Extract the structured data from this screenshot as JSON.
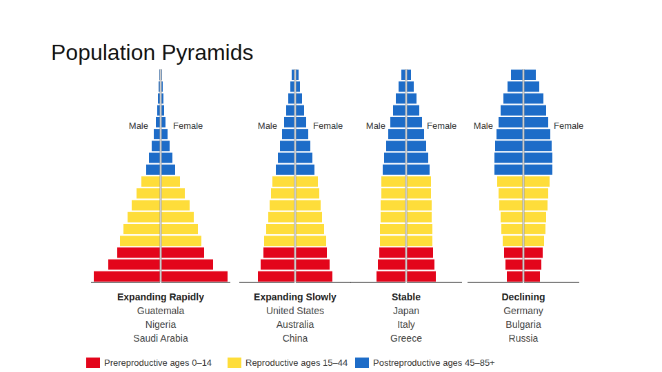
{
  "title": "Population Pyramids",
  "groups": [
    {
      "name": "Prereproductive ages 0–14",
      "color": "#e3051b"
    },
    {
      "name": "Reproductive ages 15–44",
      "color": "#fedd3a"
    },
    {
      "name": "Postreproductive ages 45–85+",
      "color": "#1d6cc8"
    }
  ],
  "chart_data": [
    {
      "type": "bar",
      "orientation": "horizontal",
      "title": "Expanding Rapidly",
      "annotations": [
        "Guatemala",
        "Nigeria",
        "Saudi Arabia"
      ],
      "categories": [
        null,
        null,
        null,
        null,
        null,
        null,
        null,
        null,
        null,
        null,
        null,
        null,
        null,
        null,
        null,
        null,
        null,
        null
      ],
      "series": [
        {
          "name": "Male",
          "values": [
            96,
            75,
            62,
            58,
            53,
            47,
            41,
            34,
            27,
            20,
            16,
            12,
            9,
            6,
            4,
            3,
            2,
            1
          ]
        },
        {
          "name": "Female",
          "values": [
            96,
            75,
            62,
            58,
            53,
            47,
            41,
            34,
            27,
            20,
            16,
            12,
            9,
            6,
            4,
            3,
            2,
            1
          ]
        }
      ],
      "colors": [
        "#e3051b",
        "#e3051b",
        "#e3051b",
        "#fedd3a",
        "#fedd3a",
        "#fedd3a",
        "#fedd3a",
        "#fedd3a",
        "#fedd3a",
        "#1d6cc8",
        "#1d6cc8",
        "#1d6cc8",
        "#1d6cc8",
        "#1d6cc8",
        "#1d6cc8",
        "#1d6cc8",
        "#1d6cc8",
        "#1d6cc8"
      ],
      "xlim": [
        0,
        100
      ],
      "tick_labels": false
    },
    {
      "type": "bar",
      "orientation": "horizontal",
      "title": "Expanding Slowly",
      "annotations": [
        "United States",
        "Australia",
        "China"
      ],
      "categories": [
        null,
        null,
        null,
        null,
        null,
        null,
        null,
        null,
        null,
        null,
        null,
        null,
        null,
        null,
        null,
        null,
        null,
        null
      ],
      "series": [
        {
          "name": "Male",
          "values": [
            53,
            49,
            45,
            44,
            41,
            38,
            36,
            34,
            32,
            27,
            24,
            21,
            18,
            15,
            12,
            9,
            6,
            4
          ]
        },
        {
          "name": "Female",
          "values": [
            53,
            49,
            45,
            44,
            41,
            38,
            36,
            34,
            32,
            27,
            24,
            21,
            18,
            15,
            12,
            9,
            6,
            4
          ]
        }
      ],
      "colors": [
        "#e3051b",
        "#e3051b",
        "#e3051b",
        "#fedd3a",
        "#fedd3a",
        "#fedd3a",
        "#fedd3a",
        "#fedd3a",
        "#fedd3a",
        "#1d6cc8",
        "#1d6cc8",
        "#1d6cc8",
        "#1d6cc8",
        "#1d6cc8",
        "#1d6cc8",
        "#1d6cc8",
        "#1d6cc8",
        "#1d6cc8"
      ],
      "xlim": [
        0,
        80
      ],
      "tick_labels": false
    },
    {
      "type": "bar",
      "orientation": "horizontal",
      "title": "Stable",
      "annotations": [
        "Japan",
        "Italy",
        "Greece"
      ],
      "categories": [
        null,
        null,
        null,
        null,
        null,
        null,
        null,
        null,
        null,
        null,
        null,
        null,
        null,
        null,
        null,
        null,
        null,
        null
      ],
      "series": [
        {
          "name": "Male",
          "values": [
            42,
            40,
            38,
            37,
            37,
            36,
            36,
            35,
            35,
            33,
            31,
            28,
            25,
            22,
            18,
            14,
            10,
            6
          ]
        },
        {
          "name": "Female",
          "values": [
            42,
            40,
            38,
            37,
            37,
            36,
            36,
            35,
            35,
            33,
            31,
            28,
            25,
            22,
            18,
            14,
            10,
            6
          ]
        }
      ],
      "colors": [
        "#e3051b",
        "#e3051b",
        "#e3051b",
        "#fedd3a",
        "#fedd3a",
        "#fedd3a",
        "#fedd3a",
        "#fedd3a",
        "#fedd3a",
        "#1d6cc8",
        "#1d6cc8",
        "#1d6cc8",
        "#1d6cc8",
        "#1d6cc8",
        "#1d6cc8",
        "#1d6cc8",
        "#1d6cc8",
        "#1d6cc8"
      ],
      "xlim": [
        0,
        80
      ],
      "tick_labels": false
    },
    {
      "type": "bar",
      "orientation": "horizontal",
      "title": "Declining",
      "annotations": [
        "Germany",
        "Bulgaria",
        "Russia"
      ],
      "categories": [
        null,
        null,
        null,
        null,
        null,
        null,
        null,
        null,
        null,
        null,
        null,
        null,
        null,
        null,
        null,
        null,
        null,
        null
      ],
      "series": [
        {
          "name": "Male",
          "values": [
            23,
            25,
            27,
            29,
            31,
            32,
            34,
            35,
            37,
            41,
            41,
            40,
            38,
            35,
            32,
            28,
            22,
            17
          ]
        },
        {
          "name": "Female",
          "values": [
            23,
            25,
            27,
            29,
            31,
            32,
            34,
            35,
            37,
            41,
            41,
            40,
            38,
            35,
            32,
            28,
            22,
            17
          ]
        }
      ],
      "colors": [
        "#e3051b",
        "#e3051b",
        "#e3051b",
        "#fedd3a",
        "#fedd3a",
        "#fedd3a",
        "#fedd3a",
        "#fedd3a",
        "#fedd3a",
        "#1d6cc8",
        "#1d6cc8",
        "#1d6cc8",
        "#1d6cc8",
        "#1d6cc8",
        "#1d6cc8",
        "#1d6cc8",
        "#1d6cc8",
        "#1d6cc8"
      ],
      "xlim": [
        0,
        80
      ],
      "tick_labels": false
    }
  ]
}
